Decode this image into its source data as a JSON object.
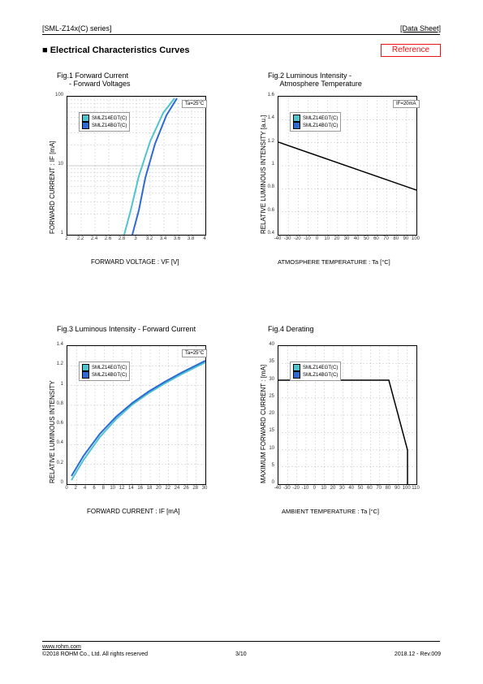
{
  "hdr": {
    "left": "[SML-Z14x(C) series]",
    "right": "[Data Sheet]"
  },
  "sectionTitle": "■ Electrical Characteristics Curves",
  "reference": "Reference",
  "fig1": {
    "title": "Fig.1 Forward Current\n      - Forward Voltages",
    "ylabel": "FORWARD CURRENT : IF [mA]",
    "xlabel": "FORWARD VOLTAGE : VF [V]",
    "note": "Ta=25°C",
    "legend": [
      "SMLZ14EGT(C)",
      "SMLZ14BGT(C)"
    ],
    "colors": {
      "s1": "#4fc4cf",
      "s2": "#2e6ad6",
      "grid": "#999",
      "bg": "#fff"
    },
    "xticks": [
      "2",
      "2.2",
      "2.4",
      "2.6",
      "2.8",
      "3",
      "3.2",
      "3.4",
      "3.6",
      "3.8",
      "4"
    ],
    "yticks": [
      "1",
      "10",
      "100"
    ],
    "plotW": 170,
    "plotH": 170,
    "s1": [
      [
        70,
        170
      ],
      [
        78,
        140
      ],
      [
        88,
        98
      ],
      [
        102,
        55
      ],
      [
        118,
        20
      ],
      [
        132,
        2
      ]
    ],
    "s2": [
      [
        80,
        170
      ],
      [
        88,
        140
      ],
      [
        96,
        100
      ],
      [
        108,
        58
      ],
      [
        122,
        23
      ],
      [
        135,
        2
      ]
    ]
  },
  "fig2": {
    "title": "Fig.2 Luminous Intensity -\n      Atmosphere Temperature",
    "ylabel": "RELATIVE LUMINOUS INTENSITY [a.u.]",
    "xlabel": "ATMOSPHERE TEMPERATURE : Ta [°C]",
    "note": "IF=20mA",
    "legend": [
      "SMLZ14EGT(C)",
      "SMLZ14BGT(C)"
    ],
    "colors": {
      "s1": "#4fc4cf",
      "s2": "#2e6ad6",
      "grid": "#999"
    },
    "xticks": [
      "-40",
      "-30",
      "-20",
      "-10",
      "0",
      "10",
      "20",
      "30",
      "40",
      "50",
      "60",
      "70",
      "80",
      "90",
      "100"
    ],
    "yticks": [
      "0.4",
      "0.6",
      "0.8",
      "1",
      "1.2",
      "1.4",
      "1.6"
    ],
    "plotW": 170,
    "plotH": 170,
    "line": [
      [
        0,
        56
      ],
      [
        170,
        115
      ]
    ]
  },
  "fig3": {
    "title": "Fig.3 Luminous Intensity - Forward Current",
    "ylabel": "RELATIVE LUMINOUS INTENSITY",
    "xlabel": "FORWARD CURRENT : IF [mA]",
    "note": "Ta=25°C",
    "legend": [
      "SMLZ14EGT(C)",
      "SMLZ14BGT(C)"
    ],
    "colors": {
      "s1": "#4fc4cf",
      "s2": "#2e6ad6",
      "grid": "#999"
    },
    "xticks": [
      "0",
      "2",
      "4",
      "6",
      "8",
      "10",
      "12",
      "14",
      "16",
      "18",
      "20",
      "22",
      "24",
      "26",
      "28",
      "30"
    ],
    "yticks": [
      "0",
      "0.2",
      "0.4",
      "0.6",
      "0.8",
      "1",
      "1.2",
      "1.4"
    ],
    "plotW": 170,
    "plotH": 170,
    "s1": [
      [
        5,
        165
      ],
      [
        20,
        140
      ],
      [
        40,
        112
      ],
      [
        60,
        90
      ],
      [
        80,
        72
      ],
      [
        100,
        58
      ],
      [
        120,
        46
      ],
      [
        140,
        35
      ],
      [
        160,
        25
      ],
      [
        170,
        20
      ]
    ],
    "s2": [
      [
        5,
        160
      ],
      [
        20,
        135
      ],
      [
        40,
        108
      ],
      [
        60,
        87
      ],
      [
        80,
        70
      ],
      [
        100,
        56
      ],
      [
        120,
        44
      ],
      [
        140,
        33
      ],
      [
        160,
        23
      ],
      [
        170,
        18
      ]
    ]
  },
  "fig4": {
    "title": "Fig.4 Derating",
    "ylabel": "MAXIMUM FORWARD CURRENT :  [mA]",
    "xlabel": "AMBIENT TEMPERATURE : Ta [°C]",
    "legend": [
      "SMLZ14EGT(C)",
      "SMLZ14BGT(C)"
    ],
    "colors": {
      "s1": "#4fc4cf",
      "s2": "#2e6ad6",
      "grid": "#999"
    },
    "xticks": [
      "-40",
      "-30",
      "-20",
      "-10",
      "0",
      "10",
      "20",
      "30",
      "40",
      "50",
      "60",
      "70",
      "80",
      "90",
      "100",
      "110"
    ],
    "yticks": [
      "0",
      "5",
      "10",
      "15",
      "20",
      "25",
      "30",
      "35",
      "40"
    ],
    "plotW": 170,
    "plotH": 170,
    "line": [
      [
        0,
        42
      ],
      [
        136,
        42
      ],
      [
        159,
        128
      ],
      [
        159,
        170
      ]
    ]
  },
  "footer": {
    "url": "www.rohm.com",
    "copy": "©2018 ROHM Co., Ltd. All rights reserved",
    "page": "3/10",
    "rev": "2018.12 - Rev.009"
  }
}
